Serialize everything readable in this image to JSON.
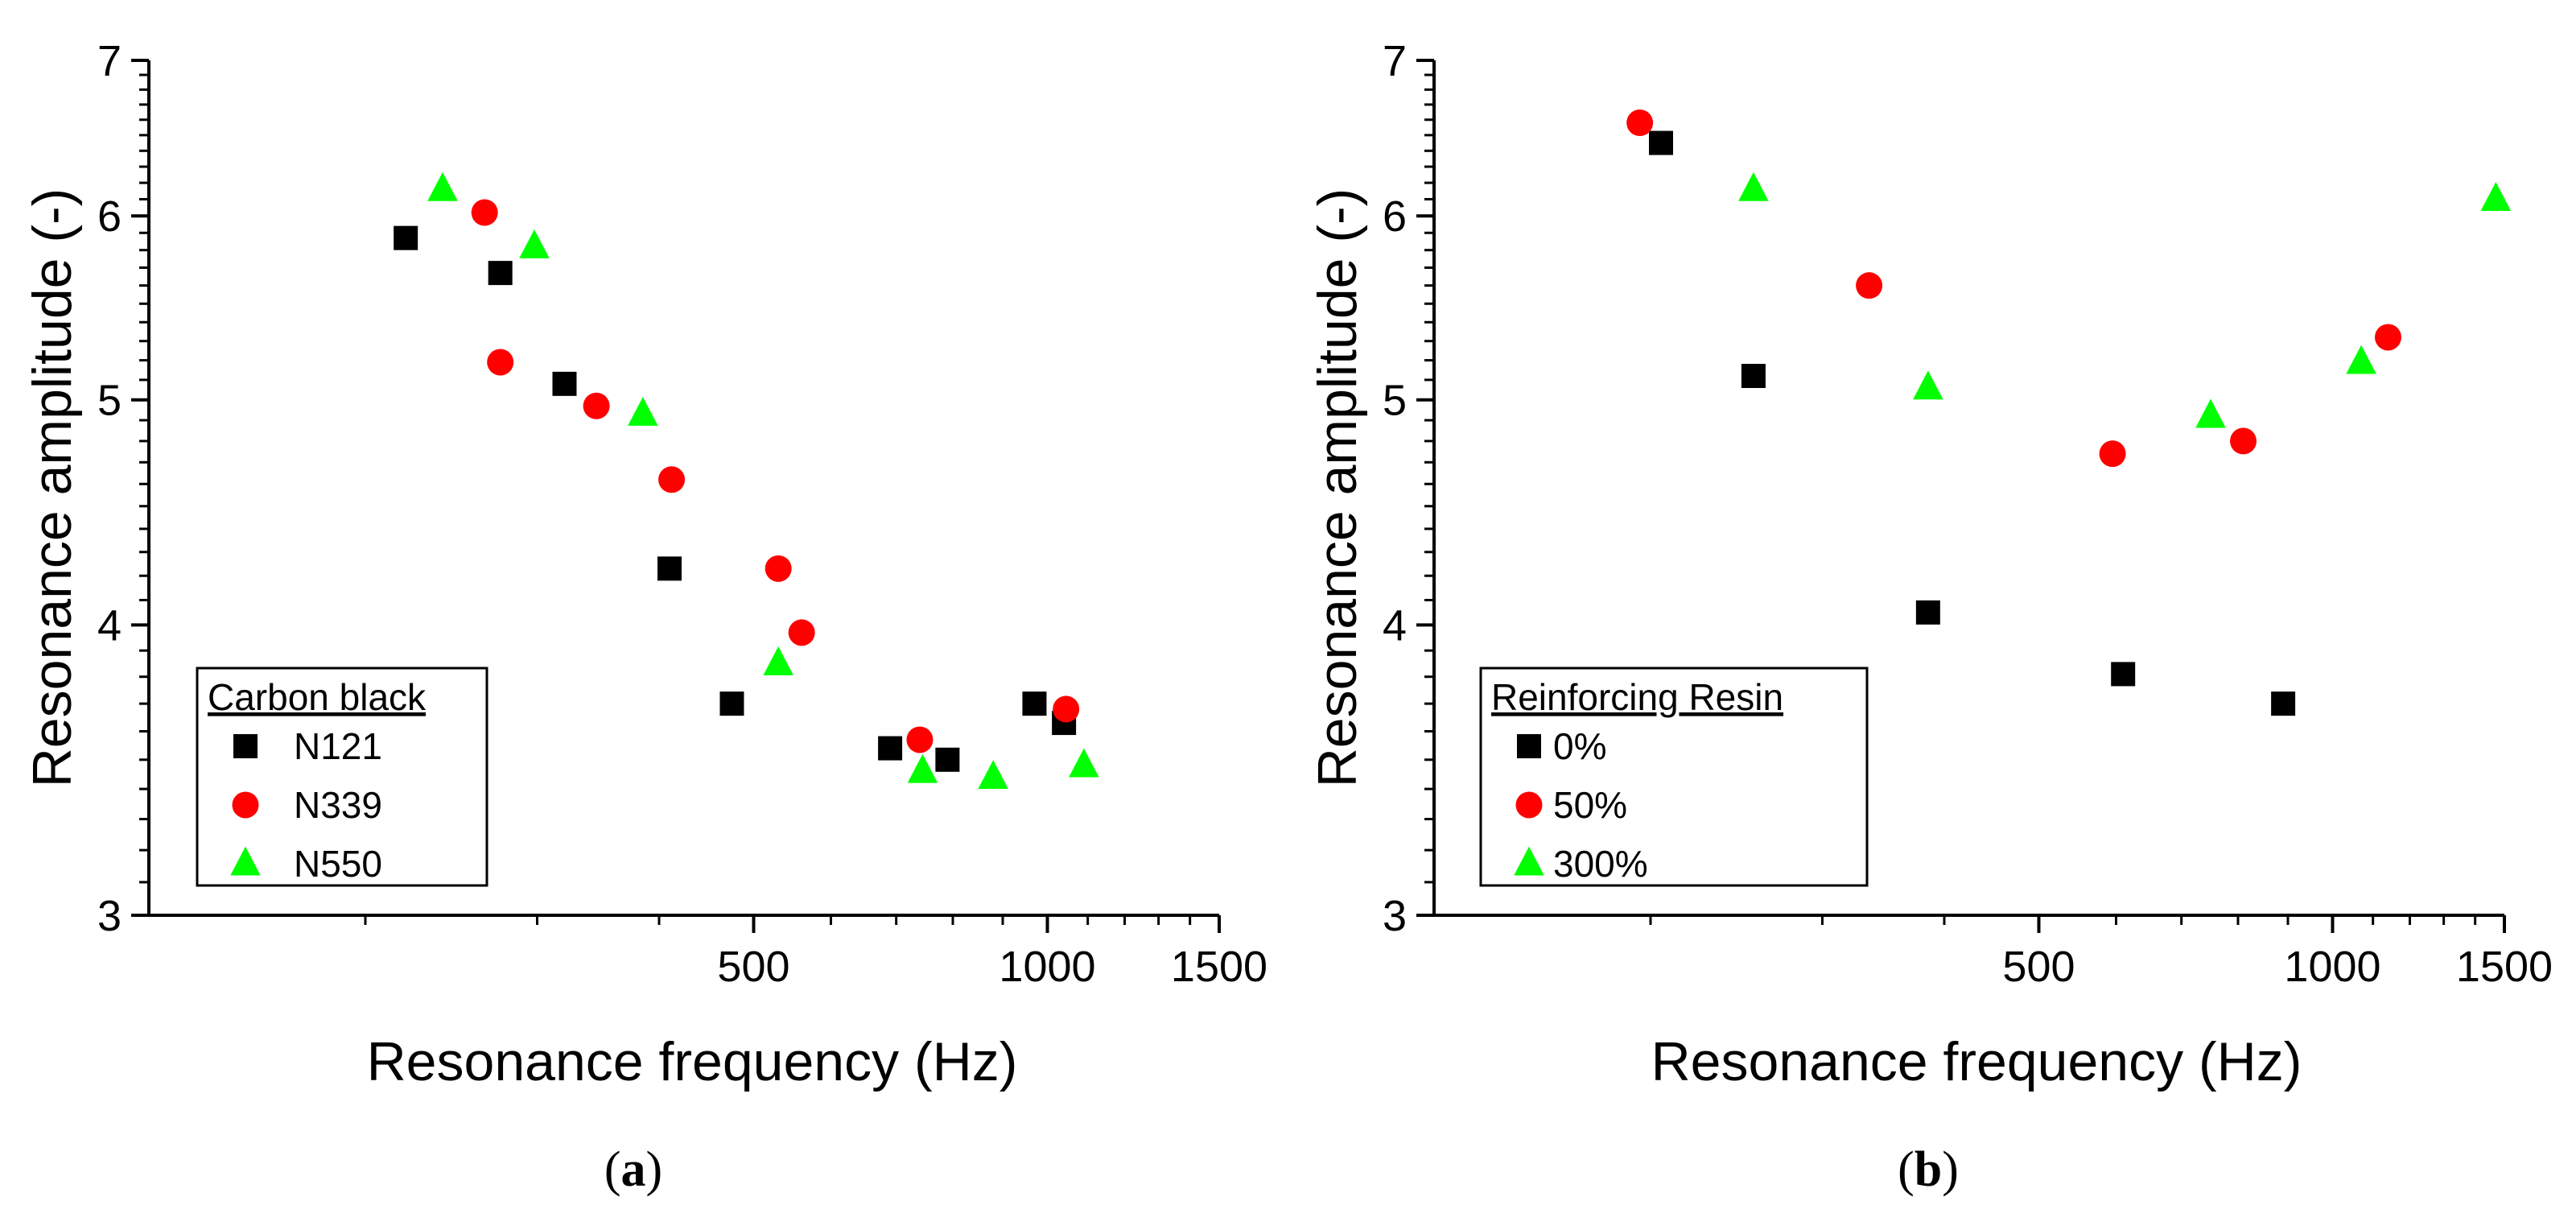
{
  "chart_data": [
    {
      "type": "scatter",
      "caption": "a",
      "xlabel": "Resonance frequency (Hz)",
      "ylabel": "Resonance amplitude (-)",
      "x_scale": "log",
      "y_scale": "log",
      "xlim": [
        120,
        1500
      ],
      "ylim": [
        3,
        7
      ],
      "x_ticks": [
        500,
        1000,
        1500
      ],
      "y_ticks": [
        3,
        4,
        5,
        6,
        7
      ],
      "legend": {
        "title": "Carbon black",
        "position": "bottom-left"
      },
      "series": [
        {
          "name": "N121",
          "marker": "square",
          "color": "#000000",
          "points": [
            [
              220,
              5.87
            ],
            [
              275,
              5.67
            ],
            [
              320,
              5.08
            ],
            [
              410,
              4.23
            ],
            [
              475,
              3.7
            ],
            [
              690,
              3.54
            ],
            [
              790,
              3.5
            ],
            [
              970,
              3.7
            ],
            [
              1040,
              3.63
            ]
          ]
        },
        {
          "name": "N339",
          "marker": "circle",
          "color": "#ff0000",
          "points": [
            [
              265,
              6.02
            ],
            [
              275,
              5.19
            ],
            [
              345,
              4.97
            ],
            [
              412,
              4.62
            ],
            [
              530,
              4.23
            ],
            [
              560,
              3.97
            ],
            [
              740,
              3.57
            ],
            [
              1045,
              3.68
            ]
          ]
        },
        {
          "name": "N550",
          "marker": "triangle",
          "color": "#00ff00",
          "points": [
            [
              240,
              6.16
            ],
            [
              298,
              5.82
            ],
            [
              385,
              4.93
            ],
            [
              530,
              3.85
            ],
            [
              745,
              3.46
            ],
            [
              880,
              3.44
            ],
            [
              1090,
              3.48
            ]
          ]
        }
      ]
    },
    {
      "type": "scatter",
      "caption": "b",
      "xlabel": "Resonance frequency (Hz)",
      "ylabel": "Resonance amplitude (-)",
      "x_scale": "log",
      "y_scale": "log",
      "xlim": [
        120,
        1500
      ],
      "ylim": [
        3,
        7
      ],
      "x_ticks": [
        500,
        1000,
        1500
      ],
      "y_ticks": [
        3,
        4,
        5,
        6,
        7
      ],
      "legend": {
        "title": "Reinforcing Resin",
        "position": "bottom-left"
      },
      "series": [
        {
          "name": "0%",
          "marker": "square",
          "color": "#000000",
          "points": [
            [
              205,
              6.45
            ],
            [
              255,
              5.12
            ],
            [
              385,
              4.05
            ],
            [
              610,
              3.81
            ],
            [
              890,
              3.7
            ]
          ]
        },
        {
          "name": "50%",
          "marker": "circle",
          "color": "#ff0000",
          "points": [
            [
              195,
              6.58
            ],
            [
              335,
              5.6
            ],
            [
              595,
              4.74
            ],
            [
              810,
              4.8
            ],
            [
              1140,
              5.32
            ]
          ]
        },
        {
          "name": "300%",
          "marker": "triangle",
          "color": "#00ff00",
          "points": [
            [
              255,
              6.16
            ],
            [
              385,
              5.06
            ],
            [
              750,
              4.92
            ],
            [
              1070,
              5.19
            ],
            [
              1470,
              6.1
            ]
          ]
        }
      ]
    }
  ]
}
